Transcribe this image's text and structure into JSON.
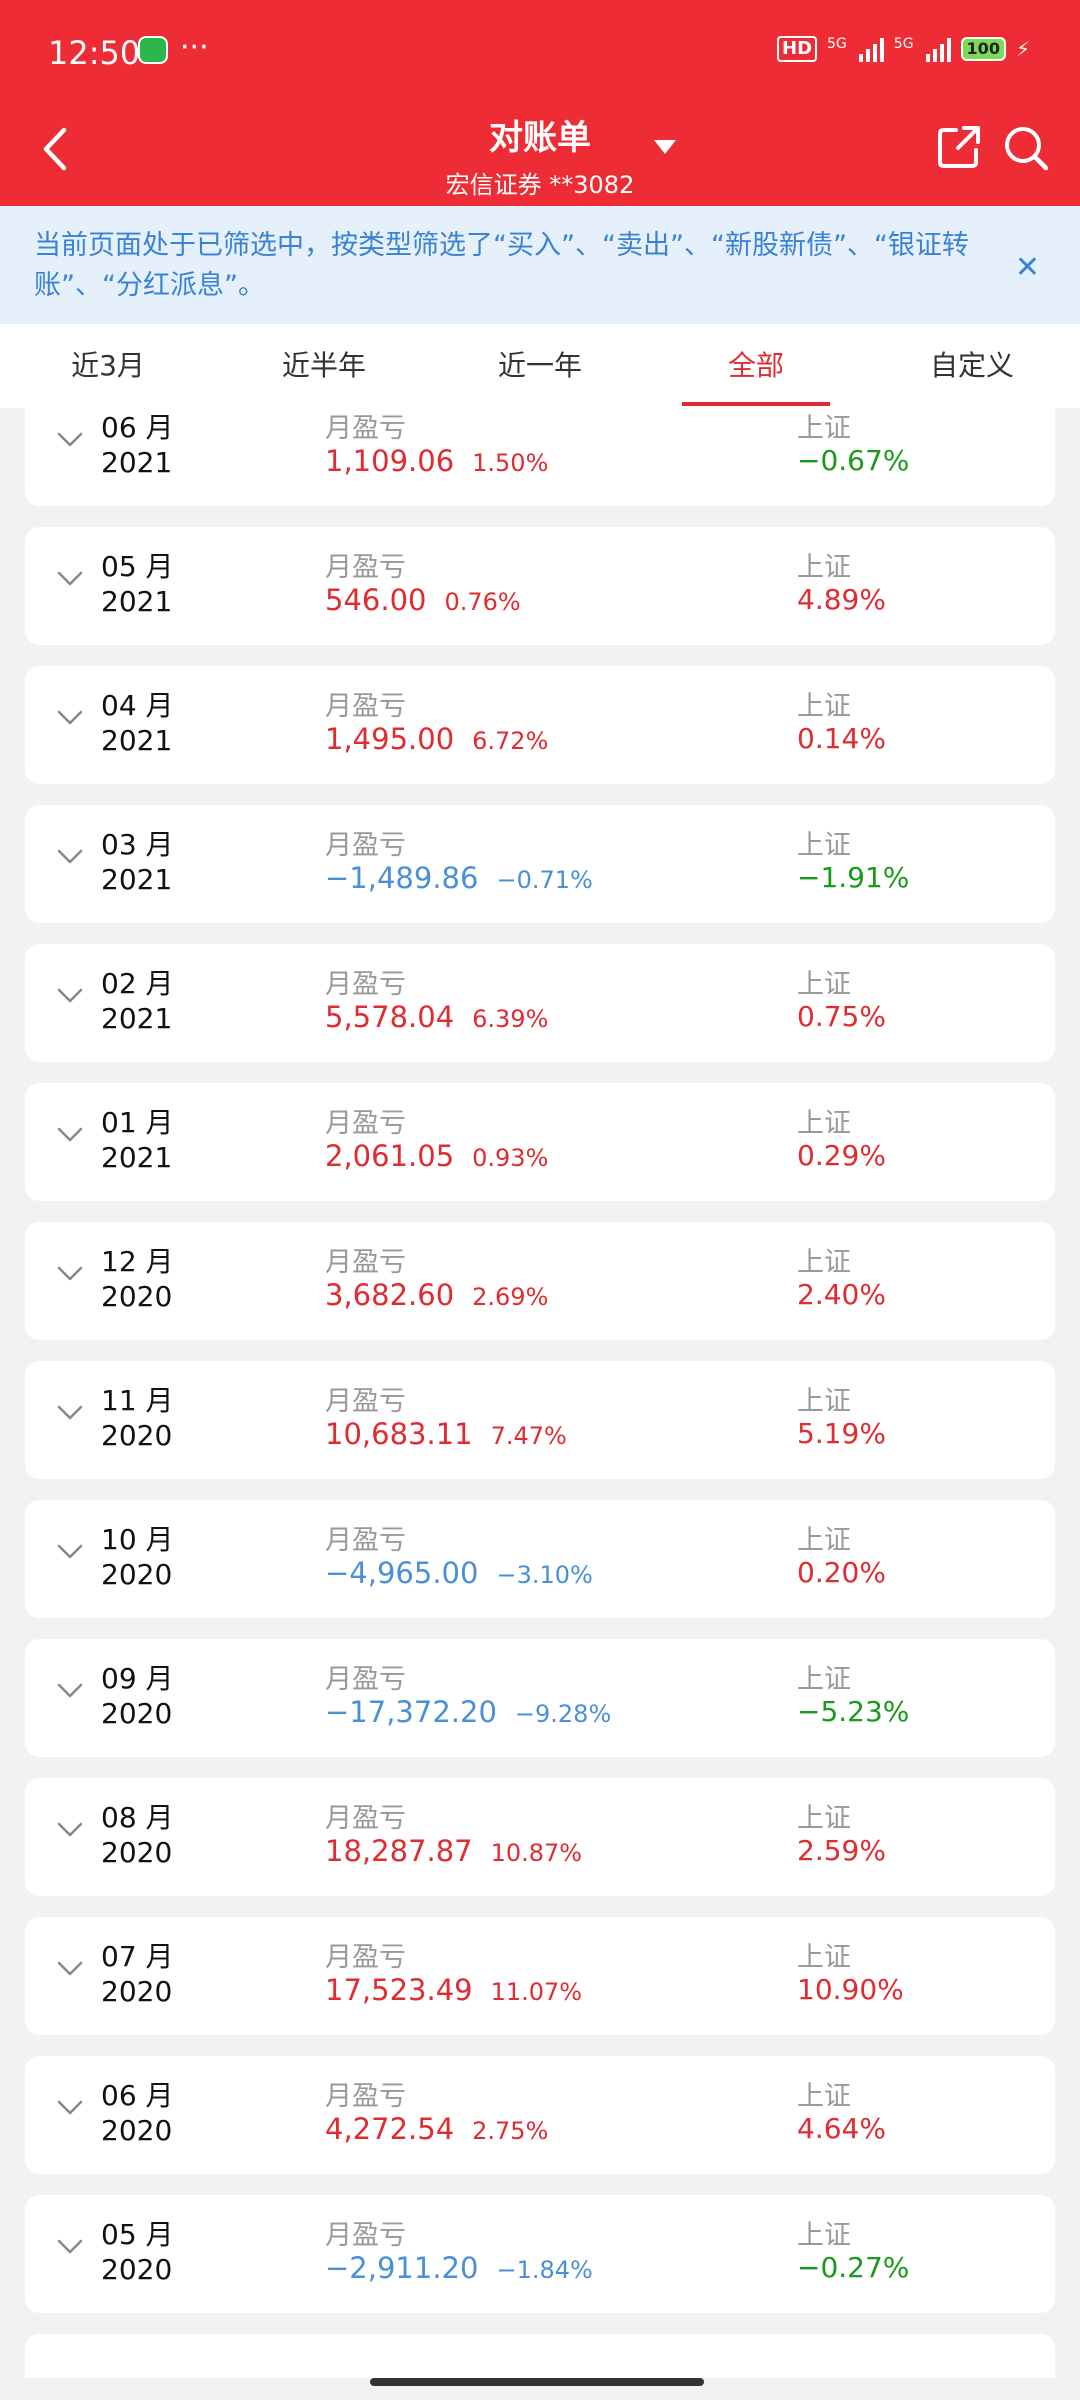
{
  "status_bar": {
    "time": "12:50",
    "dots": "···",
    "battery": "100",
    "net1": "5G",
    "net2": "5G"
  },
  "header": {
    "title": "对账单",
    "account": "宏信证券 **3082"
  },
  "banner": {
    "text": "当前页面处于已筛选中，按类型筛选了“买入”、“卖出”、“新股新债”、“银证转账”、“分红派息”。"
  },
  "tabs": [
    "近3月",
    "近半年",
    "近一年",
    "全部",
    "自定义"
  ],
  "active_tab": "全部",
  "colors": {
    "brand": "#ee2c35",
    "gain": "#e02b31",
    "loss": "#4a90d9",
    "index_down": "#1a9a1a"
  },
  "rows": [
    {
      "month": "06 月",
      "year": "2021",
      "label": "月盈亏",
      "amount": "1,109.06",
      "pct": "1.50%",
      "sign": "gain",
      "index_label": "上证",
      "index": "−0.67%",
      "index_sign": "down"
    },
    {
      "month": "05 月",
      "year": "2021",
      "label": "月盈亏",
      "amount": "546.00",
      "pct": "0.76%",
      "sign": "gain",
      "index_label": "上证",
      "index": "4.89%",
      "index_sign": "up"
    },
    {
      "month": "04 月",
      "year": "2021",
      "label": "月盈亏",
      "amount": "1,495.00",
      "pct": "6.72%",
      "sign": "gain",
      "index_label": "上证",
      "index": "0.14%",
      "index_sign": "up"
    },
    {
      "month": "03 月",
      "year": "2021",
      "label": "月盈亏",
      "amount": "−1,489.86",
      "pct": "−0.71%",
      "sign": "loss",
      "index_label": "上证",
      "index": "−1.91%",
      "index_sign": "down"
    },
    {
      "month": "02 月",
      "year": "2021",
      "label": "月盈亏",
      "amount": "5,578.04",
      "pct": "6.39%",
      "sign": "gain",
      "index_label": "上证",
      "index": "0.75%",
      "index_sign": "up"
    },
    {
      "month": "01 月",
      "year": "2021",
      "label": "月盈亏",
      "amount": "2,061.05",
      "pct": "0.93%",
      "sign": "gain",
      "index_label": "上证",
      "index": "0.29%",
      "index_sign": "up"
    },
    {
      "month": "12 月",
      "year": "2020",
      "label": "月盈亏",
      "amount": "3,682.60",
      "pct": "2.69%",
      "sign": "gain",
      "index_label": "上证",
      "index": "2.40%",
      "index_sign": "up"
    },
    {
      "month": "11 月",
      "year": "2020",
      "label": "月盈亏",
      "amount": "10,683.11",
      "pct": "7.47%",
      "sign": "gain",
      "index_label": "上证",
      "index": "5.19%",
      "index_sign": "up"
    },
    {
      "month": "10 月",
      "year": "2020",
      "label": "月盈亏",
      "amount": "−4,965.00",
      "pct": "−3.10%",
      "sign": "loss",
      "index_label": "上证",
      "index": "0.20%",
      "index_sign": "up"
    },
    {
      "month": "09 月",
      "year": "2020",
      "label": "月盈亏",
      "amount": "−17,372.20",
      "pct": "−9.28%",
      "sign": "loss",
      "index_label": "上证",
      "index": "−5.23%",
      "index_sign": "down"
    },
    {
      "month": "08 月",
      "year": "2020",
      "label": "月盈亏",
      "amount": "18,287.87",
      "pct": "10.87%",
      "sign": "gain",
      "index_label": "上证",
      "index": "2.59%",
      "index_sign": "up"
    },
    {
      "month": "07 月",
      "year": "2020",
      "label": "月盈亏",
      "amount": "17,523.49",
      "pct": "11.07%",
      "sign": "gain",
      "index_label": "上证",
      "index": "10.90%",
      "index_sign": "up"
    },
    {
      "month": "06 月",
      "year": "2020",
      "label": "月盈亏",
      "amount": "4,272.54",
      "pct": "2.75%",
      "sign": "gain",
      "index_label": "上证",
      "index": "4.64%",
      "index_sign": "up"
    },
    {
      "month": "05 月",
      "year": "2020",
      "label": "月盈亏",
      "amount": "−2,911.20",
      "pct": "−1.84%",
      "sign": "loss",
      "index_label": "上证",
      "index": "−0.27%",
      "index_sign": "down"
    }
  ]
}
